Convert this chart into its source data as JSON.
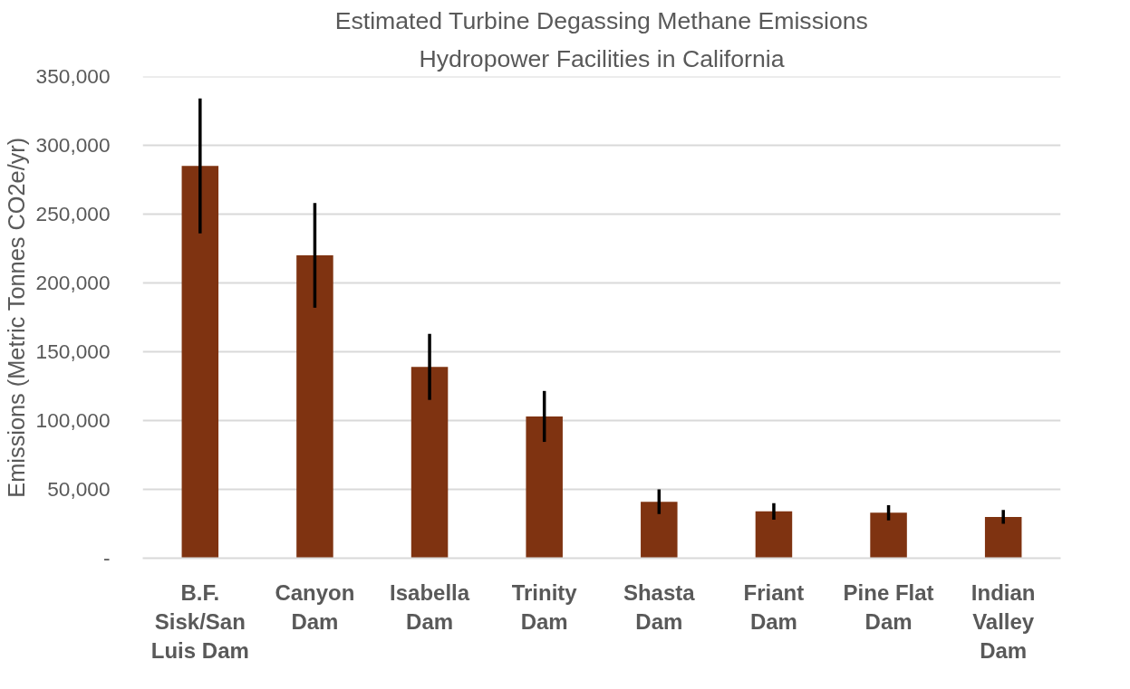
{
  "chart_data": {
    "type": "bar",
    "title": "Estimated Turbine Degassing Methane Emissions",
    "subtitle": "Hydropower Facilities in California",
    "ylabel": "Emissions (Metric Tonnes CO2e/yr)",
    "categories": [
      "B.F. Sisk/San Luis Dam",
      "Canyon Dam",
      "Isabella Dam",
      "Trinity Dam",
      "Shasta Dam",
      "Friant Dam",
      "Pine Flat Dam",
      "Indian Valley Dam"
    ],
    "values": [
      285000,
      220000,
      139000,
      103000,
      41000,
      34000,
      33000,
      30000
    ],
    "errors": [
      49000,
      38000,
      24000,
      18500,
      9000,
      6000,
      5500,
      5000
    ],
    "color": "#7f3311",
    "ylim": [
      0,
      350000
    ],
    "yticks": [
      {
        "value": 0,
        "label": "-"
      },
      {
        "value": 50000,
        "label": "50,000"
      },
      {
        "value": 100000,
        "label": "100,000"
      },
      {
        "value": 150000,
        "label": "150,000"
      },
      {
        "value": 200000,
        "label": "200,000"
      },
      {
        "value": 250000,
        "label": "250,000"
      },
      {
        "value": 300000,
        "label": "300,000"
      },
      {
        "value": 350000,
        "label": "350,000"
      }
    ],
    "grid": "y"
  }
}
